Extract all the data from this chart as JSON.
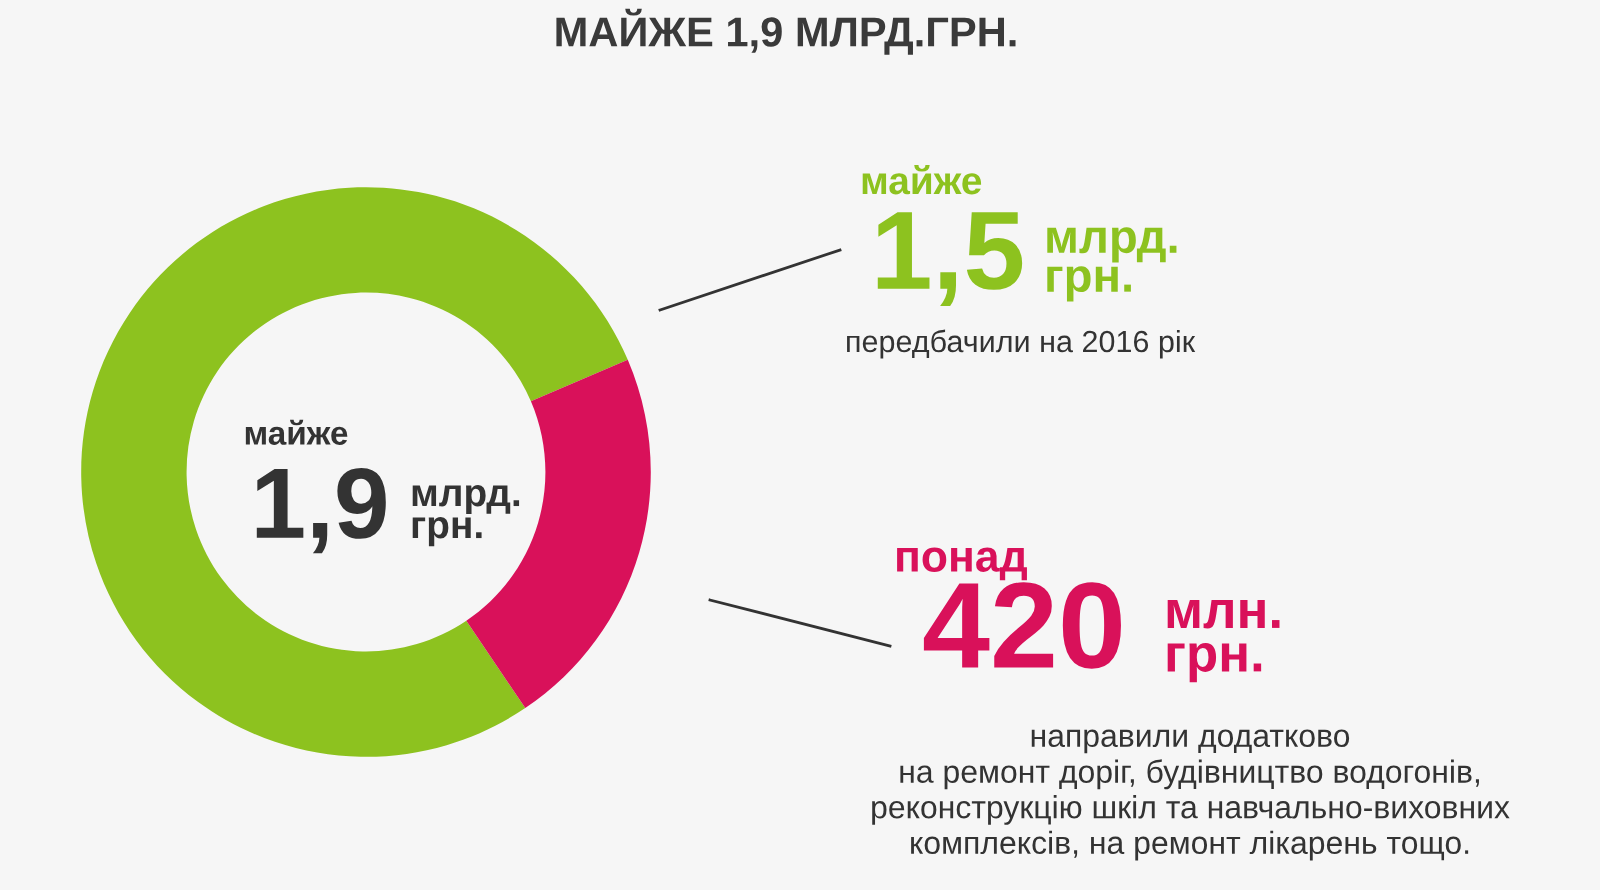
{
  "chart_data": {
    "type": "donut",
    "title": "МАЙЖЕ 1,9 МЛРД.ГРН.",
    "categories": [
      null,
      null
    ],
    "values": [
      78,
      22
    ],
    "colors": [
      "#8dc21f",
      "#d9115a"
    ],
    "annotations": [
      "майже",
      "1,9",
      "млрд.\nгрн.",
      "майже",
      "1,5",
      "млрд.\nгрн.",
      "передбачили на 2016 рік",
      "понад",
      "420",
      "млн.\nгрн.",
      "направили додатково\nна ремонт доріг, будівництво водогонів,\nреконструкцію шкіл та навчально-виховних\nкомплексів, на ремонт лікарень тощо."
    ]
  }
}
